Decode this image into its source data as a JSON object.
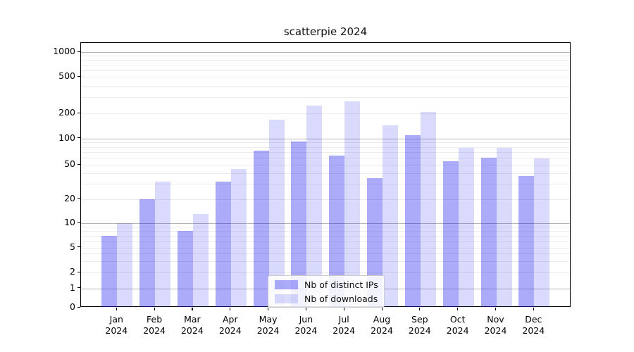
{
  "title": "scatterpie 2024",
  "chart_data": {
    "type": "bar",
    "title": "scatterpie 2024",
    "categories": [
      "Jan",
      "Feb",
      "Mar",
      "Apr",
      "May",
      "Jun",
      "Jul",
      "Aug",
      "Sep",
      "Oct",
      "Nov",
      "Dec"
    ],
    "x_year": "2024",
    "series": [
      {
        "name": "Nb of distinct IPs",
        "color": "#2222ee",
        "alpha": 0.38,
        "rendered_color": "#a8a8f8",
        "values": [
          7,
          20,
          8,
          32,
          73,
          92,
          64,
          35,
          109,
          55,
          61,
          37
        ]
      },
      {
        "name": "Nb of downloads",
        "color": "#2222ee",
        "alpha": 0.17,
        "rendered_color": "#d8d8fb",
        "values": [
          10,
          32,
          13,
          45,
          167,
          245,
          272,
          143,
          207,
          79,
          79,
          59
        ]
      }
    ],
    "yaxis": {
      "scale": "log-like with linear zero",
      "ticks": [
        0,
        1,
        2,
        5,
        10,
        20,
        50,
        100,
        200,
        500,
        1000
      ],
      "major_gridline_values": [
        1,
        10,
        100,
        1000
      ],
      "minor_gridlines": true,
      "ylim": [
        0,
        1300
      ]
    },
    "legend": {
      "position": "bottom-center",
      "entries": [
        "Nb of distinct IPs",
        "Nb of downloads"
      ]
    },
    "grid": true
  },
  "colors": {
    "major_grid": "#b5b5b5",
    "minor_grid": "#ececec",
    "axis_spine": "#000000",
    "text": "#000000",
    "background": "#ffffff"
  }
}
